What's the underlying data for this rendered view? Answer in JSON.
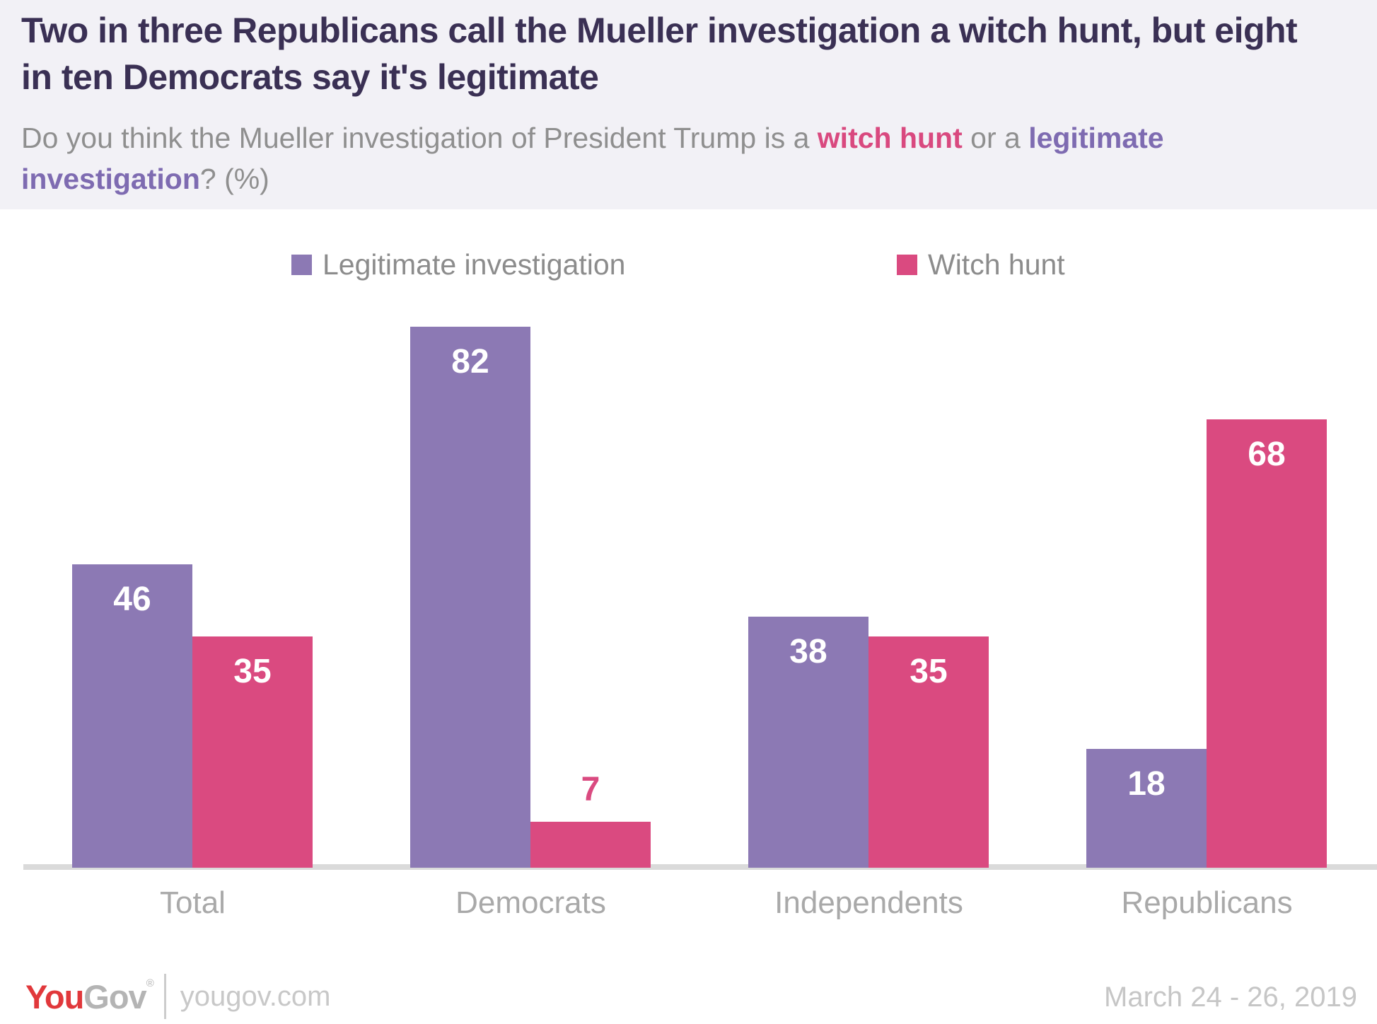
{
  "header": {
    "title": "Two in three Republicans call the Mueller investigation a witch hunt, but eight in ten Democrats say it's legitimate",
    "subtitle": {
      "lead": "Do you think the Mueller investigation of President Trump is a ",
      "witch_hunt": "witch hunt",
      "middle": " or a ",
      "legitimate_investigation": "legitimate investigation",
      "tail": "? (%)"
    }
  },
  "colors": {
    "title_text": "#3a3054",
    "header_background": "#f2f1f6",
    "legitimate_purple": "#8c79b4",
    "witch_hunt_pink": "#da4a80",
    "axis_line": "#dadada"
  },
  "legend": [
    {
      "label": "Legitimate investigation",
      "color": "#8c79b4"
    },
    {
      "label": "Witch hunt",
      "color": "#da4a80"
    }
  ],
  "chart_data": {
    "type": "bar",
    "categories": [
      "Total",
      "Democrats",
      "Independents",
      "Republicans"
    ],
    "series": [
      {
        "name": "Legitimate investigation",
        "color": "#8c79b4",
        "values": [
          46,
          82,
          38,
          18
        ]
      },
      {
        "name": "Witch hunt",
        "color": "#da4a80",
        "values": [
          35,
          7,
          35,
          68
        ]
      }
    ],
    "ylim": [
      0,
      82
    ],
    "value_labels_shown": true,
    "grid": false,
    "legend_position": "top"
  },
  "footer": {
    "logo_you": "You",
    "logo_gov": "Gov",
    "logo_mark": "®",
    "site": "yougov.com",
    "date_range": "March 24 - 26, 2019"
  }
}
